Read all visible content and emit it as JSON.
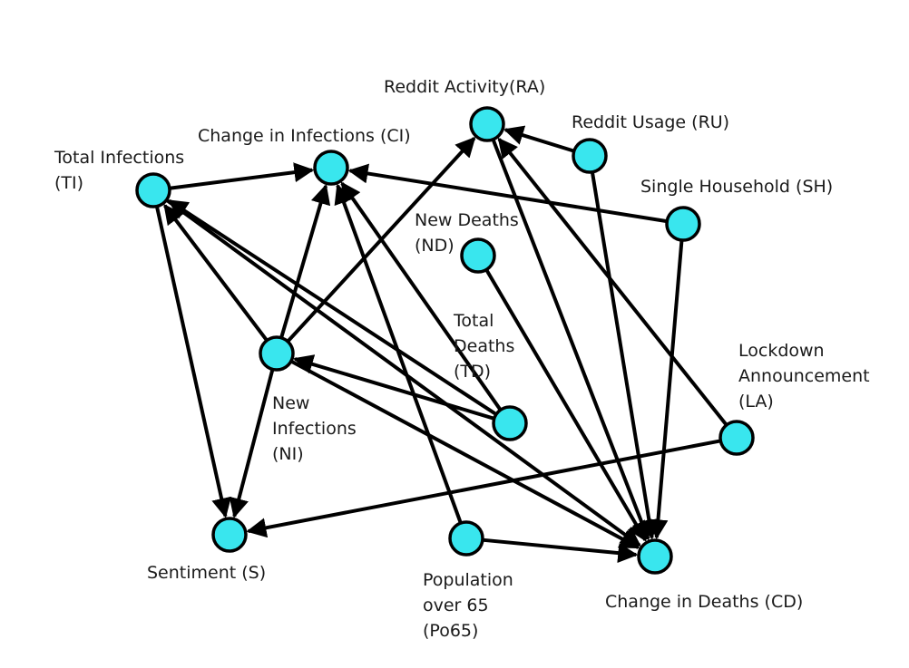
{
  "colors": {
    "node_fill": "#39e6ee",
    "stroke": "#000000",
    "text": "#1a1a1a"
  },
  "nodes": {
    "RA": {
      "label_lines": [
        "Reddit Activity(RA)"
      ]
    },
    "RU": {
      "label_lines": [
        "Reddit Usage (RU)"
      ]
    },
    "CI": {
      "label_lines": [
        "Change in Infections (CI)"
      ]
    },
    "TI": {
      "label_lines": [
        "Total Infections",
        "(TI)"
      ]
    },
    "SH": {
      "label_lines": [
        "Single Household (SH)"
      ]
    },
    "ND": {
      "label_lines": [
        "New Deaths",
        "(ND)"
      ]
    },
    "NI": {
      "label_lines": [
        "New",
        "Infections",
        "(NI)"
      ]
    },
    "TD": {
      "label_lines": [
        "Total",
        "Deaths",
        "(TD)"
      ]
    },
    "LA": {
      "label_lines": [
        "Lockdown",
        "Announcement",
        "(LA)"
      ]
    },
    "S": {
      "label_lines": [
        "Sentiment (S)"
      ]
    },
    "Po65": {
      "label_lines": [
        "Population",
        "over 65",
        "(Po65)"
      ]
    },
    "CD": {
      "label_lines": [
        "Change in Deaths (CD)"
      ]
    }
  },
  "edges": [
    {
      "from": "TI",
      "to": "CI"
    },
    {
      "from": "TI",
      "to": "S"
    },
    {
      "from": "NI",
      "to": "CI"
    },
    {
      "from": "NI",
      "to": "RA"
    },
    {
      "from": "NI",
      "to": "TI"
    },
    {
      "from": "NI",
      "to": "S"
    },
    {
      "from": "NI",
      "to": "CD"
    },
    {
      "from": "TD",
      "to": "TI"
    },
    {
      "from": "TD",
      "to": "CI"
    },
    {
      "from": "TD",
      "to": "NI"
    },
    {
      "from": "TI",
      "to": "CD"
    },
    {
      "from": "SH",
      "to": "CI"
    },
    {
      "from": "SH",
      "to": "CD"
    },
    {
      "from": "RU",
      "to": "RA"
    },
    {
      "from": "RU",
      "to": "CD"
    },
    {
      "from": "RA",
      "to": "CD"
    },
    {
      "from": "LA",
      "to": "RA"
    },
    {
      "from": "LA",
      "to": "S"
    },
    {
      "from": "ND",
      "to": "CD"
    },
    {
      "from": "Po65",
      "to": "CI"
    },
    {
      "from": "Po65",
      "to": "CD"
    }
  ]
}
